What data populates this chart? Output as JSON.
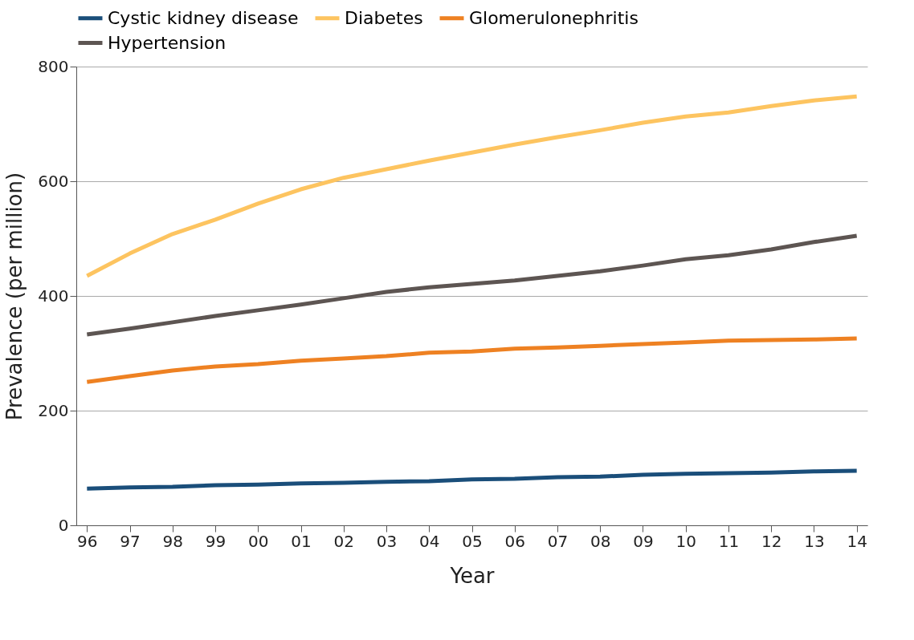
{
  "chart_data": {
    "type": "line",
    "xlabel": "Year",
    "ylabel": "Prevalence (per million)",
    "categories": [
      "96",
      "97",
      "98",
      "99",
      "00",
      "01",
      "02",
      "03",
      "04",
      "05",
      "06",
      "07",
      "08",
      "09",
      "10",
      "11",
      "12",
      "13",
      "14"
    ],
    "series": [
      {
        "name": "Cystic kidney disease",
        "color": "#1a4e7a",
        "values": [
          64,
          66,
          67,
          70,
          71,
          73,
          74,
          76,
          77,
          80,
          81,
          84,
          85,
          88,
          90,
          91,
          92,
          94,
          95
        ]
      },
      {
        "name": "Diabetes",
        "color": "#fdc460",
        "values": [
          435,
          474,
          508,
          533,
          561,
          586,
          606,
          621,
          636,
          650,
          664,
          677,
          689,
          702,
          713,
          720,
          731,
          741,
          748
        ]
      },
      {
        "name": "Glomerulonephritis",
        "color": "#ee8122",
        "values": [
          250,
          260,
          270,
          277,
          281,
          287,
          291,
          295,
          301,
          303,
          308,
          310,
          313,
          316,
          319,
          322,
          323,
          324,
          326
        ]
      },
      {
        "name": "Hypertension",
        "color": "#5d5552",
        "values": [
          333,
          343,
          354,
          365,
          375,
          385,
          396,
          407,
          415,
          421,
          427,
          435,
          443,
          453,
          464,
          471,
          481,
          494,
          505
        ]
      }
    ],
    "ylim": [
      0,
      800
    ],
    "yticks": [
      0,
      200,
      400,
      600,
      800
    ],
    "grid": "y",
    "legend": "top",
    "line_style": "solid"
  }
}
